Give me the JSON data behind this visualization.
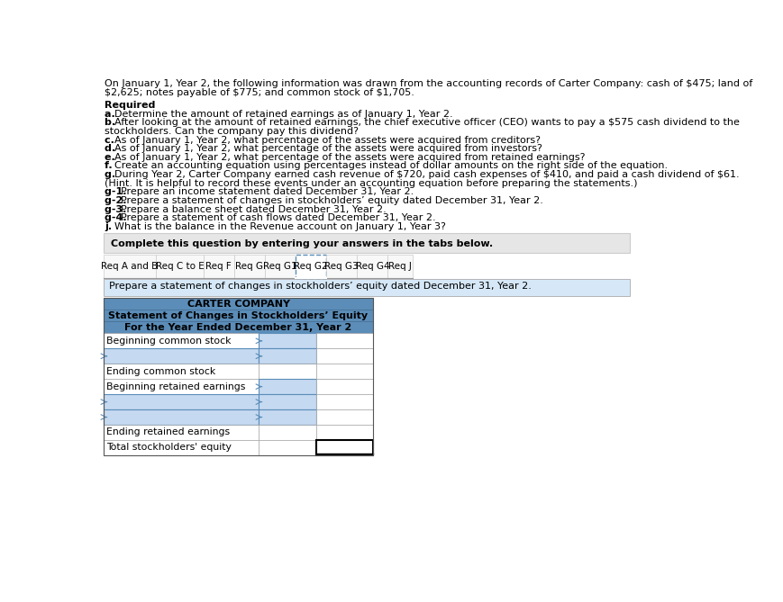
{
  "intro_text_line1": "On January 1, Year 2, the following information was drawn from the accounting records of Carter Company: cash of $475; land of",
  "intro_text_line2": "$2,625; notes payable of $775; and common stock of $1,705.",
  "required_label": "Required",
  "required_items": [
    {
      "bold": "a. ",
      "normal": "Determine the amount of retained earnings as of January 1, Year 2.",
      "extra": ""
    },
    {
      "bold": "b. ",
      "normal": "After looking at the amount of retained earnings, the chief executive officer (CEO) wants to pay a $575 cash dividend to the",
      "extra": "stockholders. Can the company pay this dividend?"
    },
    {
      "bold": "c. ",
      "normal": "As of January 1, Year 2, what percentage of the assets were acquired from creditors?",
      "extra": ""
    },
    {
      "bold": "d. ",
      "normal": "As of January 1, Year 2, what percentage of the assets were acquired from investors?",
      "extra": ""
    },
    {
      "bold": "e. ",
      "normal": "As of January 1, Year 2, what percentage of the assets were acquired from retained earnings?",
      "extra": ""
    },
    {
      "bold": "f. ",
      "normal": "Create an accounting equation using percentages instead of dollar amounts on the right side of the equation.",
      "extra": ""
    },
    {
      "bold": "g. ",
      "normal": "During Year 2, Carter Company earned cash revenue of $720, paid cash expenses of $410, and paid a cash dividend of $61.",
      "extra": "(Hint. It is helpful to record these events under an accounting equation before preparing the statements.)"
    },
    {
      "bold": "g-1. ",
      "normal": "Prepare an income statement dated December 31, Year 2.",
      "extra": ""
    },
    {
      "bold": "g-2. ",
      "normal": "Prepare a statement of changes in stockholders’ equity dated December 31, Year 2.",
      "extra": ""
    },
    {
      "bold": "g-3. ",
      "normal": "Prepare a balance sheet dated December 31, Year 2.",
      "extra": ""
    },
    {
      "bold": "g-4. ",
      "normal": "Prepare a statement of cash flows dated December 31, Year 2.",
      "extra": ""
    },
    {
      "bold": "j. ",
      "normal": "What is the balance in the Revenue account on January 1, Year 3?",
      "extra": ""
    }
  ],
  "complete_text": "Complete this question by entering your answers in the tabs below.",
  "tabs": [
    "Req A and B",
    "Req C to E",
    "Req F",
    "Req G",
    "Req G1",
    "Req G2",
    "Req G3",
    "Req G4",
    "Req J"
  ],
  "active_tab": "Req G2",
  "instruction_text": "Prepare a statement of changes in stockholders’ equity dated December 31, Year 2.",
  "table_header_bg": "#5b8db8",
  "table_title1": "CARTER COMPANY",
  "table_title2": "Statement of Changes in Stockholders’ Equity",
  "table_title3": "For the Year Ended December 31, Year 2",
  "table_rows": [
    {
      "label": "Beginning common stock",
      "col1_blue": true,
      "col2_blue": false,
      "is_input_row": false
    },
    {
      "label": "",
      "col1_blue": true,
      "col2_blue": false,
      "is_input_row": true
    },
    {
      "label": "Ending common stock",
      "col1_blue": false,
      "col2_blue": false,
      "is_input_row": false
    },
    {
      "label": "Beginning retained earnings",
      "col1_blue": true,
      "col2_blue": false,
      "is_input_row": false
    },
    {
      "label": "",
      "col1_blue": true,
      "col2_blue": false,
      "is_input_row": true
    },
    {
      "label": "",
      "col1_blue": true,
      "col2_blue": false,
      "is_input_row": true
    },
    {
      "label": "Ending retained earnings",
      "col1_blue": false,
      "col2_blue": false,
      "is_input_row": false
    },
    {
      "label": "Total stockholders' equity",
      "col1_blue": false,
      "col2_blue": false,
      "is_input_row": false,
      "last_row": true
    }
  ],
  "bg_color": "#ffffff",
  "gray_box_color": "#e6e6e6",
  "light_blue_bg": "#d6e8f7",
  "blue_cell_bg": "#c5d9f1",
  "blue_cell_border": "#5b8db8"
}
